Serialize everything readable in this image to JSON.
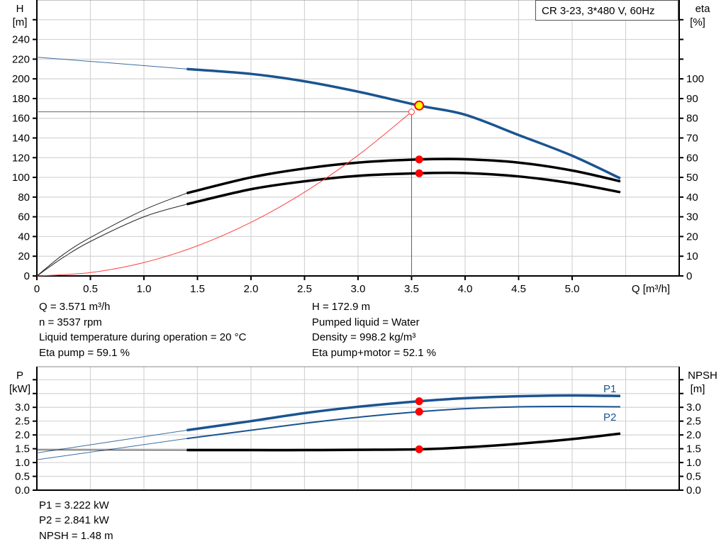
{
  "chart_data": [
    {
      "type": "line",
      "title": "CR 3-23, 3*480 V, 60Hz",
      "xlabel": "Q [m³/h]",
      "ylabel": "H\n[m]",
      "ylabel_top": "H",
      "ylabel_unit": "[m]",
      "y2label_top": "eta",
      "y2label_unit": "[%]",
      "xlim": [
        0,
        6.0
      ],
      "ylim": [
        0,
        280
      ],
      "y2lim": [
        0,
        140
      ],
      "xticks": [
        "0",
        "0.5",
        "1.0",
        "1.5",
        "2.0",
        "2.5",
        "3.0",
        "3.5",
        "4.0",
        "4.5",
        "5.0"
      ],
      "yticks": [
        "0",
        "20",
        "40",
        "60",
        "80",
        "100",
        "120",
        "140",
        "160",
        "180",
        "200",
        "220",
        "240"
      ],
      "y2ticks": [
        "0",
        "10",
        "20",
        "30",
        "40",
        "50",
        "60",
        "70",
        "80",
        "90",
        "100"
      ],
      "grid": true,
      "series": [
        {
          "id": "head",
          "axis": "left",
          "color": "#1a5490",
          "thin_until": 1.4,
          "x": [
            0,
            1.4,
            2.0,
            2.5,
            3.0,
            3.571,
            4.0,
            4.5,
            5.0,
            5.45
          ],
          "y": [
            222,
            210,
            205,
            197.5,
            187,
            172.9,
            163.6,
            143,
            122,
            99
          ]
        },
        {
          "id": "eta-pump",
          "axis": "right",
          "color": "#000000",
          "thin_until": 1.4,
          "x": [
            0,
            0.25,
            0.5,
            1.0,
            1.4,
            2.0,
            2.5,
            3.0,
            3.571,
            4.0,
            4.5,
            5.0,
            5.45
          ],
          "y": [
            0,
            11,
            19.5,
            33.5,
            42,
            50,
            54.5,
            57.5,
            59.1,
            59.2,
            57.5,
            53.5,
            48
          ]
        },
        {
          "id": "eta-pump-motor",
          "axis": "right",
          "color": "#000000",
          "thin_until": 1.4,
          "x": [
            0,
            0.25,
            0.5,
            1.0,
            1.4,
            2.0,
            2.5,
            3.0,
            3.571,
            4.0,
            4.5,
            5.0,
            5.45
          ],
          "y": [
            0,
            9.5,
            17.5,
            30,
            36.4,
            44,
            48,
            50.8,
            52.1,
            52.2,
            50.5,
            47,
            42.5
          ]
        },
        {
          "id": "system-curve",
          "axis": "left",
          "color": "#ff4040",
          "thin_until": 99,
          "x": [
            0,
            0.5,
            1.0,
            1.5,
            2.0,
            2.5,
            3.0,
            3.5
          ],
          "y": [
            0,
            3.4,
            13.6,
            30.6,
            54.4,
            85,
            122.4,
            166.5
          ]
        }
      ],
      "guide_point": {
        "x": 3.5,
        "y": 166.5
      },
      "operating_point": {
        "x": 3.571,
        "y": 172.9,
        "color": "#ffff00"
      },
      "duty_markers": [
        {
          "x": 3.571,
          "y": 59.1,
          "axis": "right"
        },
        {
          "x": 3.571,
          "y": 52.1,
          "axis": "right"
        }
      ]
    },
    {
      "type": "line",
      "ylabel_top": "P",
      "ylabel_unit": "[kW]",
      "y2label_top": "NPSH",
      "y2label_unit": "[m]",
      "xlim": [
        0,
        6.0
      ],
      "ylim": [
        0,
        4.47
      ],
      "yticks": [
        "0.0",
        "0.5",
        "1.0",
        "1.5",
        "2.0",
        "2.5",
        "3.0"
      ],
      "y2ticks": [
        "0.0",
        "0.5",
        "1.0",
        "1.5",
        "2.0",
        "2.5",
        "3.0"
      ],
      "grid": true,
      "series": [
        {
          "id": "P1",
          "name": "P1",
          "color": "#1a5490",
          "thin_until": 1.4,
          "x": [
            0,
            1.4,
            2.0,
            2.5,
            3.0,
            3.571,
            4.0,
            4.5,
            5.0,
            5.45
          ],
          "y": [
            1.35,
            2.17,
            2.5,
            2.79,
            3.02,
            3.222,
            3.33,
            3.4,
            3.43,
            3.41
          ]
        },
        {
          "id": "P2",
          "name": "P2",
          "color": "#1a5490",
          "thin_until": 1.4,
          "x": [
            0,
            1.4,
            2.0,
            2.5,
            3.0,
            3.571,
            4.0,
            4.5,
            5.0,
            5.45
          ],
          "y": [
            1.1,
            1.87,
            2.17,
            2.42,
            2.64,
            2.841,
            2.95,
            3.02,
            3.03,
            3.02
          ]
        },
        {
          "id": "NPSH",
          "color": "#000000",
          "thin_until": 1.4,
          "x": [
            0,
            1.4,
            2.0,
            2.5,
            3.0,
            3.571,
            4.0,
            4.5,
            5.0,
            5.45
          ],
          "y": [
            1.46,
            1.45,
            1.45,
            1.45,
            1.46,
            1.48,
            1.55,
            1.68,
            1.85,
            2.05
          ]
        }
      ],
      "duty_markers": [
        {
          "x": 3.571,
          "y": 3.222
        },
        {
          "x": 3.571,
          "y": 2.841
        },
        {
          "x": 3.571,
          "y": 1.48
        }
      ]
    }
  ],
  "title": "CR 3-23, 3*480 V, 60Hz",
  "info_top": {
    "left": [
      "Q = 3.571 m³/h",
      "n = 3537 rpm",
      "Liquid temperature during operation = 20 °C",
      "Eta pump = 59.1 %"
    ],
    "right": [
      "H = 172.9 m",
      "Pumped liquid = Water",
      "Density = 998.2 kg/m³",
      "Eta pump+motor = 52.1 %"
    ]
  },
  "info_bottom": [
    "P1 = 3.222 kW",
    "P2 = 2.841 kW",
    "NPSH = 1.48 m"
  ],
  "labels": {
    "p1": "P1",
    "p2": "P2"
  }
}
